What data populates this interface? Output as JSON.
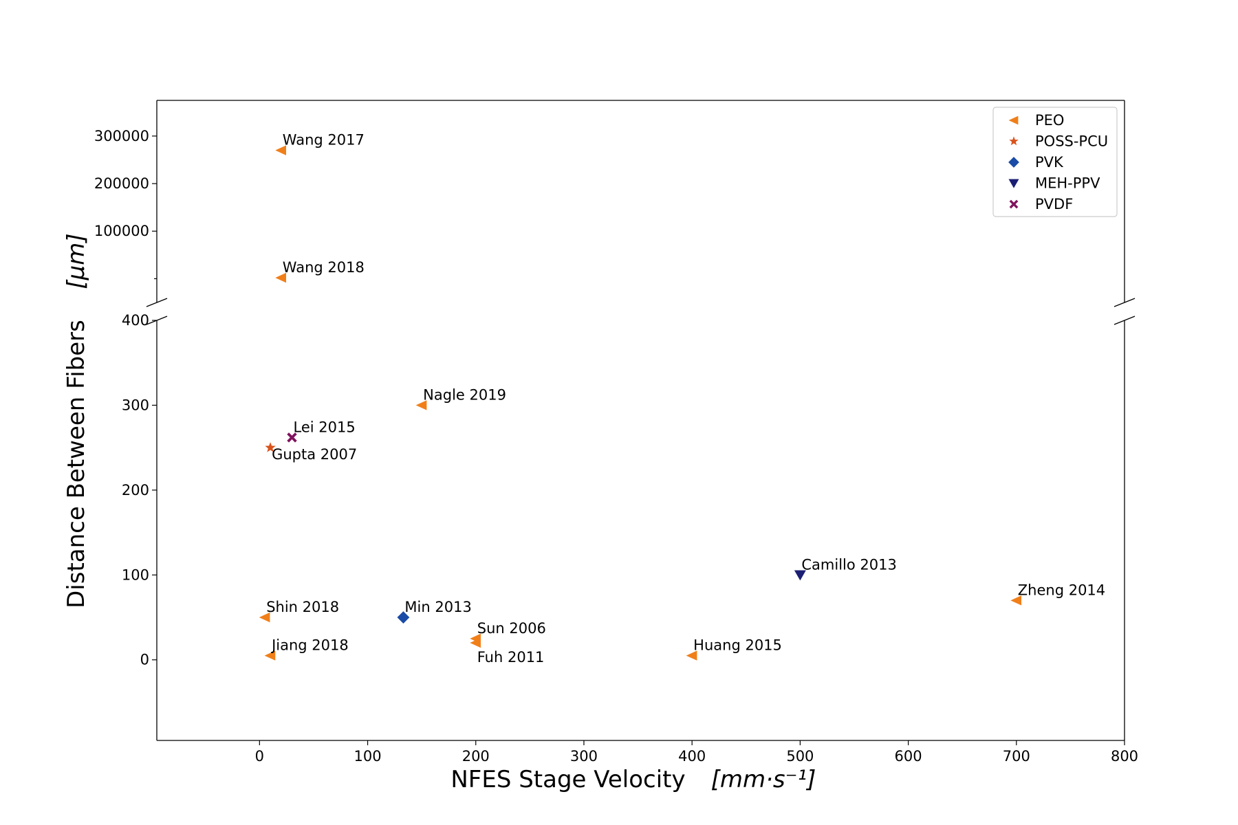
{
  "chart_data": {
    "type": "scatter",
    "xlabel": "NFES Stage Velocity",
    "xlabel_unit": "[mm·s⁻¹]",
    "ylabel": "Distance Between Fibers",
    "ylabel_unit": "[μm]",
    "xlim": [
      -95,
      800
    ],
    "x_ticks": [
      0,
      100,
      200,
      300,
      400,
      500,
      600,
      700,
      800
    ],
    "y_axis_broken": true,
    "ylim_lower": [
      -95,
      400
    ],
    "ylim_upper": [
      -50000,
      375000
    ],
    "y_ticks_lower": [
      0,
      100,
      200,
      300,
      400
    ],
    "y_ticks_upper": [
      100000,
      200000,
      300000
    ],
    "legend_position": "top-right",
    "grid": false,
    "series": [
      {
        "name": "PEO",
        "marker": "triangle-left",
        "color": "#f07f1a",
        "points": [
          {
            "label": "Wang 2017",
            "x": 20,
            "y": 270000
          },
          {
            "label": "Wang 2018",
            "x": 20,
            "y": 2000
          },
          {
            "label": "Nagle 2019",
            "x": 150,
            "y": 300
          },
          {
            "label": "Shin 2018",
            "x": 5,
            "y": 50
          },
          {
            "label": "Jiang 2018",
            "x": 10,
            "y": 5
          },
          {
            "label": "Sun 2006",
            "x": 200,
            "y": 25
          },
          {
            "label": "Fuh 2011",
            "x": 200,
            "y": 20
          },
          {
            "label": "Huang 2015",
            "x": 400,
            "y": 5
          },
          {
            "label": "Zheng 2014",
            "x": 700,
            "y": 70
          }
        ]
      },
      {
        "name": "POSS-PCU",
        "marker": "star",
        "color": "#d9531c",
        "points": [
          {
            "label": "Gupta 2007",
            "x": 10,
            "y": 250
          }
        ]
      },
      {
        "name": "PVK",
        "marker": "diamond",
        "color": "#1a4ba6",
        "points": [
          {
            "label": "Min 2013",
            "x": 133,
            "y": 50
          }
        ]
      },
      {
        "name": "MEH-PPV",
        "marker": "triangle-down",
        "color": "#1b1f73",
        "points": [
          {
            "label": "Camillo 2013",
            "x": 500,
            "y": 100
          }
        ]
      },
      {
        "name": "PVDF",
        "marker": "x-filled",
        "color": "#80135e",
        "points": [
          {
            "label": "Lei 2015",
            "x": 30,
            "y": 262
          }
        ]
      }
    ]
  }
}
